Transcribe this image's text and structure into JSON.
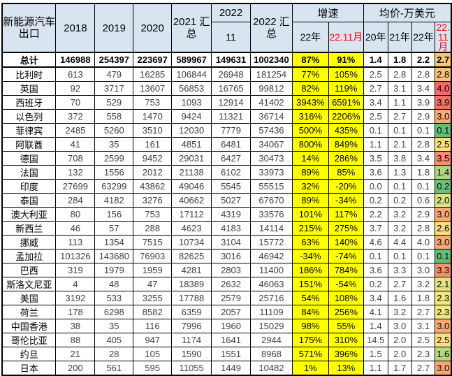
{
  "colors": {
    "header_bg": "#D8E4F0",
    "growth_bg": "#FFFF00",
    "red_text": "#FF0000"
  },
  "header": {
    "row_label": "新能源汽车出口",
    "col_2018": "2018",
    "col_2019": "2019",
    "col_2020": "2020",
    "col_2021_total": "2021 汇总",
    "col_2022_11_top": "2022",
    "col_2022_11_bottom": "11",
    "col_2022_total": "2022 汇总",
    "growth_group": "增速",
    "growth_sub": [
      "22年",
      "22.11月"
    ],
    "price_group": "均价-万美元",
    "price_sub": [
      "20年",
      "21年",
      "22年",
      "22.11月"
    ]
  },
  "rows": [
    {
      "name": "总计",
      "bold": true,
      "values": [
        "146988",
        "254397",
        "223697",
        "589967",
        "149631",
        "1002340"
      ],
      "growth": [
        "87%",
        "91%"
      ],
      "price": [
        "1.4",
        "1.8",
        "2.2"
      ],
      "price_latest": "2.7",
      "price_latest_bg": "#FBC77A"
    },
    {
      "name": "比利时",
      "bold": false,
      "values": [
        "613",
        "479",
        "16285",
        "106844",
        "26948",
        "181254"
      ],
      "growth": [
        "77%",
        "105%"
      ],
      "price": [
        "2.5",
        "2.8",
        "2.8"
      ],
      "price_latest": "2.8",
      "price_latest_bg": "#FBC279"
    },
    {
      "name": "英国",
      "bold": false,
      "values": [
        "92",
        "3717",
        "13607",
        "56853",
        "16765",
        "99812"
      ],
      "growth": [
        "82%",
        "119%"
      ],
      "price": [
        "2.7",
        "3.1",
        "3.4"
      ],
      "price_latest": "4.0",
      "price_latest_bg": "#F8696B"
    },
    {
      "name": "西班牙",
      "bold": false,
      "values": [
        "70",
        "529",
        "753",
        "1093",
        "12914",
        "41402"
      ],
      "growth": [
        "3943%",
        "6591%"
      ],
      "price": [
        "3.4",
        "1.1",
        "3.9"
      ],
      "price_latest": "3.9",
      "price_latest_bg": "#F8706C"
    },
    {
      "name": "以色列",
      "bold": false,
      "values": [
        "372",
        "558",
        "1470",
        "9424",
        "11321",
        "36714"
      ],
      "growth": [
        "316%",
        "2206%"
      ],
      "price": [
        "2.5",
        "2.7",
        "2.9"
      ],
      "price_latest": "3.0",
      "price_latest_bg": "#FAA976"
    },
    {
      "name": "菲律宾",
      "bold": false,
      "values": [
        "2485",
        "5260",
        "3510",
        "12030",
        "7779",
        "57436"
      ],
      "growth": [
        "500%",
        "435%"
      ],
      "price": [
        "0.1",
        "0.1",
        "0.1"
      ],
      "price_latest": "0.1",
      "price_latest_bg": "#63BE7B"
    },
    {
      "name": "阿联酋",
      "bold": false,
      "values": [
        "41",
        "35",
        "161",
        "4851",
        "6481",
        "34067"
      ],
      "growth": [
        "800%",
        "849%"
      ],
      "price": [
        "1.1",
        "2.1",
        "2.8"
      ],
      "price_latest": "2.5",
      "price_latest_bg": "#FEE081"
    },
    {
      "name": "德国",
      "bold": false,
      "values": [
        "708",
        "2599",
        "9452",
        "29031",
        "6427",
        "30473"
      ],
      "growth": [
        "14%",
        "286%"
      ],
      "price": [
        "3.5",
        "3.8",
        "3.4"
      ],
      "price_latest": "3.5",
      "price_latest_bg": "#F98B70"
    },
    {
      "name": "法国",
      "bold": false,
      "values": [
        "132",
        "1556",
        "2012",
        "21138",
        "6102",
        "33973"
      ],
      "growth": [
        "89%",
        "85%"
      ],
      "price": [
        "3.6",
        "1.3",
        "1.8"
      ],
      "price_latest": "1.4",
      "price_latest_bg": "#B1D580"
    },
    {
      "name": "印度",
      "bold": false,
      "values": [
        "27699",
        "63299",
        "43862",
        "49046",
        "5545",
        "55515"
      ],
      "growth": [
        "32%",
        "-20%"
      ],
      "price": [
        "0.0",
        "0.1",
        "0.1"
      ],
      "price_latest": "0.2",
      "price_latest_bg": "#6BC17C"
    },
    {
      "name": "泰国",
      "bold": false,
      "values": [
        "284",
        "4182",
        "3276",
        "40662",
        "5027",
        "67670"
      ],
      "growth": [
        "89%",
        "-34%"
      ],
      "price": [
        "0.2",
        "0.2",
        "0.6"
      ],
      "price_latest": "2.0",
      "price_latest_bg": "#DCE182"
    },
    {
      "name": "澳大利亚",
      "bold": false,
      "values": [
        "80",
        "156",
        "753",
        "17112",
        "4319",
        "33576"
      ],
      "growth": [
        "101%",
        "117%"
      ],
      "price": [
        "2.2",
        "3.2",
        "2.9"
      ],
      "price_latest": "3.0",
      "price_latest_bg": "#FAA976"
    },
    {
      "name": "新西兰",
      "bold": false,
      "values": [
        "46",
        "57",
        "288",
        "4623",
        "4183",
        "14114"
      ],
      "growth": [
        "215%",
        "275%"
      ],
      "price": [
        "3.7",
        "3.2",
        "2.8"
      ],
      "price_latest": "2.6",
      "price_latest_bg": "#FCDC80"
    },
    {
      "name": "挪威",
      "bold": false,
      "values": [
        "113",
        "1354",
        "7515",
        "10734",
        "3104",
        "15772"
      ],
      "growth": [
        "63%",
        "140%"
      ],
      "price": [
        "4.6",
        "4.4",
        "4.0"
      ],
      "price_latest": "3.0",
      "price_latest_bg": "#FAA976"
    },
    {
      "name": "孟加拉",
      "bold": false,
      "values": [
        "101326",
        "143680",
        "76903",
        "82625",
        "3016",
        "46942"
      ],
      "growth": [
        "-34%",
        "-74%"
      ],
      "price": [
        "0.1",
        "0.1",
        "0.1"
      ],
      "price_latest": "0.1",
      "price_latest_bg": "#63BE7B"
    },
    {
      "name": "巴西",
      "bold": false,
      "values": [
        "319",
        "1979",
        "1959",
        "4281",
        "2803",
        "11400"
      ],
      "growth": [
        "186%",
        "784%"
      ],
      "price": [
        "3.6",
        "3.3",
        "3.0"
      ],
      "price_latest": "3.3",
      "price_latest_bg": "#F9916F"
    },
    {
      "name": "斯洛文尼亚",
      "bold": false,
      "values": [
        "4",
        "48",
        "47",
        "18389",
        "2632",
        "46063"
      ],
      "growth": [
        "151%",
        "-54%"
      ],
      "price": [
        "0.2",
        "2.7",
        "3.2"
      ],
      "price_latest": "2.1",
      "price_latest_bg": "#E5E383"
    },
    {
      "name": "美国",
      "bold": false,
      "values": [
        "3192",
        "533",
        "3255",
        "17788",
        "2579",
        "25716"
      ],
      "growth": [
        "54%",
        "108%"
      ],
      "price": [
        "3.4",
        "1.6",
        "1.8"
      ],
      "price_latest": "2.3",
      "price_latest_bg": "#F0E683"
    },
    {
      "name": "荷兰",
      "bold": false,
      "values": [
        "178",
        "6298",
        "8582",
        "6359",
        "2057",
        "11109"
      ],
      "growth": [
        "84%",
        "256%"
      ],
      "price": [
        "4.1",
        "3.2",
        "2.7"
      ],
      "price_latest": "2.3",
      "price_latest_bg": "#F0E683"
    },
    {
      "name": "中国香港",
      "bold": false,
      "values": [
        "38",
        "35",
        "116",
        "7996",
        "1960",
        "15029"
      ],
      "growth": [
        "98%",
        "55%"
      ],
      "price": [
        "1.4",
        "3.0",
        "3.1"
      ],
      "price_latest": "3.0",
      "price_latest_bg": "#FAA976"
    },
    {
      "name": "哥伦比亚",
      "bold": false,
      "values": [
        "88",
        "405",
        "947",
        "1174",
        "1641",
        "2944"
      ],
      "growth": [
        "175%",
        "310%"
      ],
      "price": [
        "14.5",
        "2.0",
        "2.5"
      ],
      "price_latest": "2.5",
      "price_latest_bg": "#FEE081"
    },
    {
      "name": "约旦",
      "bold": false,
      "values": [
        "21",
        "28",
        "105",
        "1590",
        "1551",
        "8968"
      ],
      "growth": [
        "571%",
        "396%"
      ],
      "price": [
        "1.5",
        "2.0",
        "2.3"
      ],
      "price_latest": "1.6",
      "price_latest_bg": "#B5D881"
    },
    {
      "name": "日本",
      "bold": false,
      "values": [
        "200",
        "561",
        "595",
        "11055",
        "1449",
        "10482"
      ],
      "growth": [
        "1%",
        "13%"
      ],
      "price": [
        "1.1",
        "1.7",
        "2.7"
      ],
      "price_latest": "3.0",
      "price_latest_bg": "#FAA976"
    }
  ]
}
